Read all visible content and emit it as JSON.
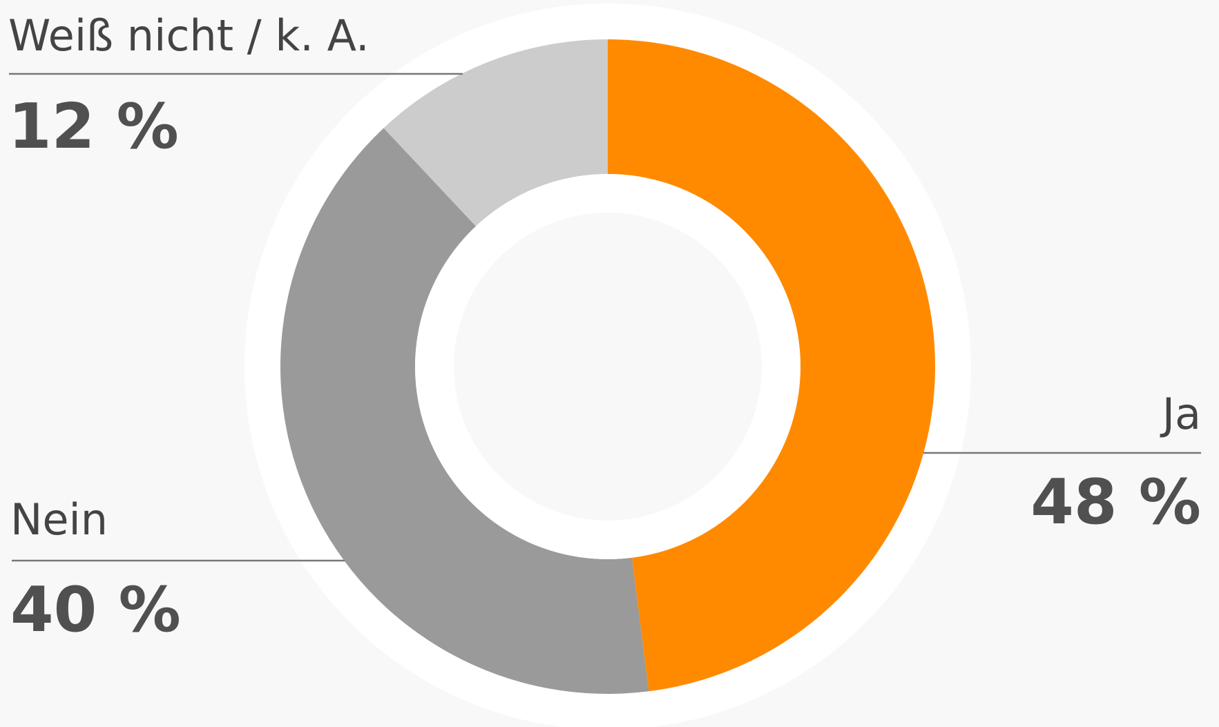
{
  "chart_data": {
    "type": "donut",
    "categories": [
      "Ja",
      "Nein",
      "Weiß nicht / k. A."
    ],
    "values": [
      48,
      40,
      12
    ],
    "value_labels": [
      "48 %",
      "40 %",
      "12 %"
    ],
    "colors": [
      "#ff8a00",
      "#9a9a9a",
      "#cccccc"
    ]
  }
}
